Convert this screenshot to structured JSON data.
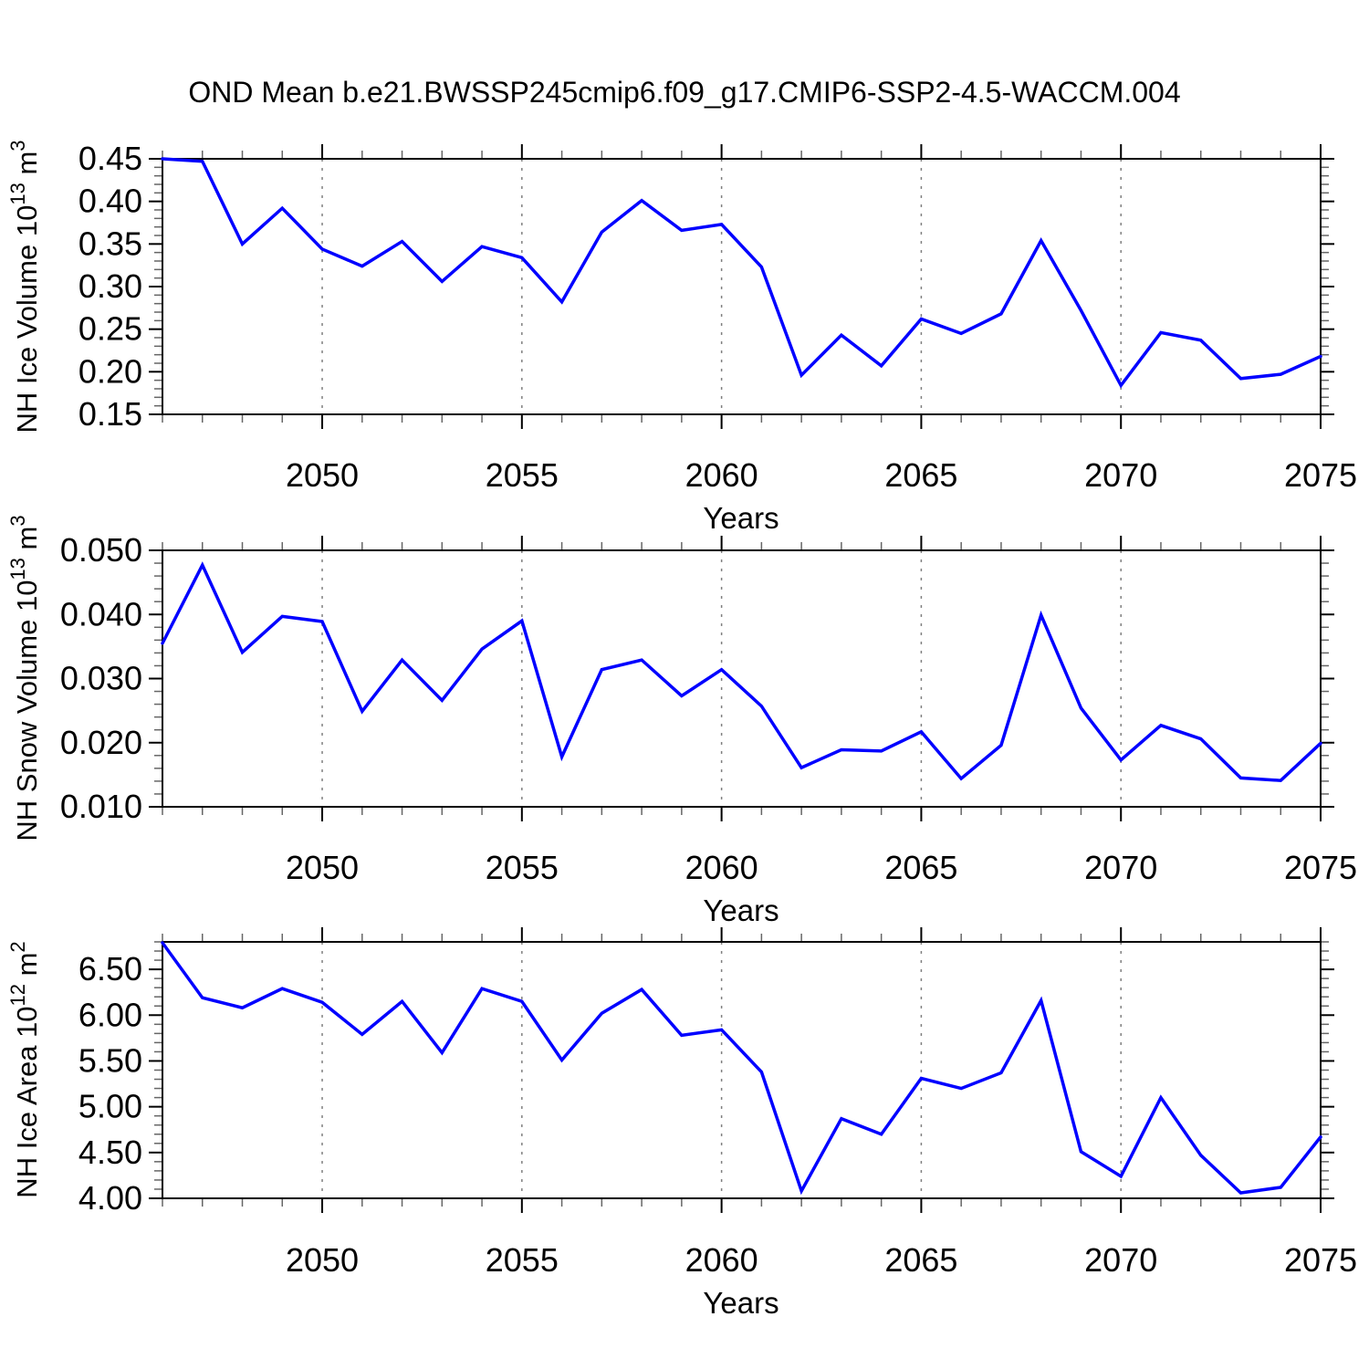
{
  "title": "OND Mean b.e21.BWSSP245cmip6.f09_g17.CMIP6-SSP2-4.5-WACCM.004",
  "xlabel": "Years",
  "line_color": "#0000ff",
  "colors": {
    "frame": "#000000",
    "grid": "#808080",
    "major_tick": "#000000",
    "minor_tick": "#666666",
    "text": "#000000",
    "background": "#ffffff"
  },
  "xlim": [
    2046,
    2075
  ],
  "years": [
    2046,
    2047,
    2048,
    2049,
    2050,
    2051,
    2052,
    2053,
    2054,
    2055,
    2056,
    2057,
    2058,
    2059,
    2060,
    2061,
    2062,
    2063,
    2064,
    2065,
    2066,
    2067,
    2068,
    2069,
    2070,
    2071,
    2072,
    2073,
    2074,
    2075
  ],
  "x_major_ticks": [
    2050,
    2055,
    2060,
    2065,
    2070,
    2075
  ],
  "x_grid_years": [
    2050,
    2055,
    2060,
    2065,
    2070
  ],
  "chart_data": [
    {
      "type": "line",
      "ylabel": "NH Ice Volume 10^13 m^3",
      "ylabel_parts": {
        "pre": "NH Ice Volume 10",
        "exp1": "13",
        "mid": " m",
        "exp2": "3"
      },
      "ylim": [
        0.15,
        0.45
      ],
      "ytick_step": 0.05,
      "yminor_step": 0.01,
      "ytick_decimals": 2,
      "ytick_labels": [
        "0.15",
        "0.20",
        "0.25",
        "0.30",
        "0.35",
        "0.40",
        "0.45"
      ],
      "values": [
        0.45,
        0.447,
        0.35,
        0.392,
        0.344,
        0.324,
        0.353,
        0.306,
        0.347,
        0.334,
        0.282,
        0.364,
        0.401,
        0.366,
        0.373,
        0.323,
        0.196,
        0.243,
        0.207,
        0.262,
        0.245,
        0.268,
        0.354,
        0.272,
        0.184,
        0.246,
        0.237,
        0.192,
        0.197,
        0.218
      ]
    },
    {
      "type": "line",
      "ylabel": "NH Snow Volume 10^13 m^3",
      "ylabel_parts": {
        "pre": "NH Snow Volume 10",
        "exp1": "13",
        "mid": " m",
        "exp2": "3"
      },
      "ylim": [
        0.01,
        0.05
      ],
      "ytick_step": 0.01,
      "yminor_step": 0.002,
      "ytick_decimals": 3,
      "ytick_labels": [
        "0.010",
        "0.020",
        "0.030",
        "0.040",
        "0.050"
      ],
      "values": [
        0.0355,
        0.0477,
        0.0341,
        0.0397,
        0.0389,
        0.0249,
        0.0329,
        0.0266,
        0.0346,
        0.039,
        0.0178,
        0.0314,
        0.0329,
        0.0273,
        0.0314,
        0.0257,
        0.0161,
        0.0189,
        0.0187,
        0.0217,
        0.0144,
        0.0196,
        0.0399,
        0.0254,
        0.0173,
        0.0227,
        0.0206,
        0.0145,
        0.0141,
        0.0199
      ]
    },
    {
      "type": "line",
      "ylabel": "NH Ice Area 10^12 m^2",
      "ylabel_parts": {
        "pre": "NH Ice Area 10",
        "exp1": "12",
        "mid": " m",
        "exp2": "2"
      },
      "ylim": [
        4.0,
        6.8
      ],
      "ytick_step": 0.5,
      "yminor_step": 0.1,
      "ytick_decimals": 2,
      "ytick_labels": [
        "4.00",
        "4.50",
        "5.00",
        "5.50",
        "6.00",
        "6.50"
      ],
      "values": [
        6.79,
        6.19,
        6.08,
        6.29,
        6.14,
        5.79,
        6.15,
        5.59,
        6.29,
        6.15,
        5.51,
        6.02,
        6.28,
        5.78,
        5.84,
        5.38,
        4.08,
        4.87,
        4.7,
        5.31,
        5.2,
        5.37,
        6.16,
        4.51,
        4.24,
        5.1,
        4.47,
        4.06,
        4.12,
        4.67
      ]
    }
  ]
}
